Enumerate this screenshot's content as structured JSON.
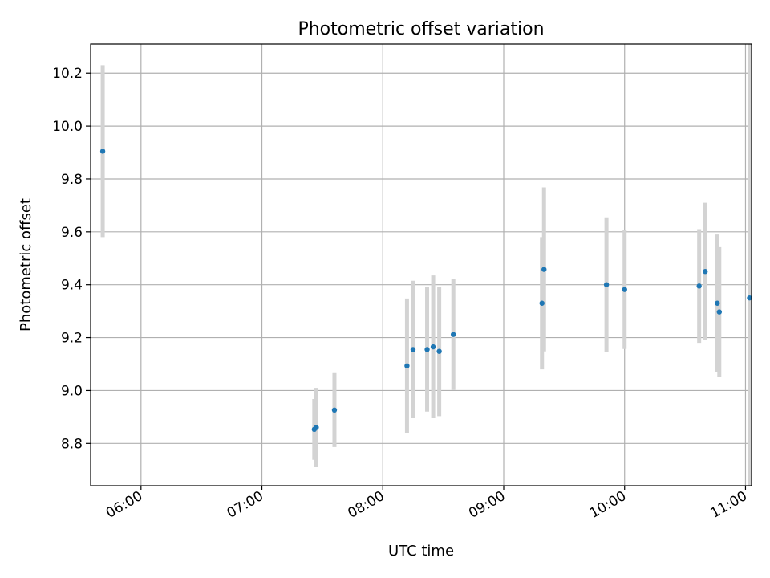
{
  "chart_data": {
    "type": "scatter",
    "title": "Photometric offset variation",
    "xlabel": "UTC time",
    "ylabel": "Photometric offset",
    "x_axis": "time",
    "xlim": [
      "05:35",
      "11:03"
    ],
    "ylim": [
      8.64,
      10.31
    ],
    "xticks": [
      "06:00",
      "07:00",
      "08:00",
      "09:00",
      "10:00",
      "11:00"
    ],
    "yticks": [
      8.8,
      9.0,
      9.2,
      9.4,
      9.6,
      9.8,
      10.0,
      10.2
    ],
    "ytick_labels": [
      "8.8",
      "9.0",
      "9.2",
      "9.4",
      "9.6",
      "9.8",
      "10.0",
      "10.2"
    ],
    "grid": true,
    "colors": {
      "point": "#1f77b4",
      "errorbar": "#d3d3d3",
      "grid": "#b0b0b0"
    },
    "series": [
      {
        "points": [
          {
            "x": "05:41",
            "y": 9.905,
            "err": 0.325
          },
          {
            "x": "07:26",
            "y": 8.853,
            "err": 0.115
          },
          {
            "x": "07:27",
            "y": 8.86,
            "err": 0.15
          },
          {
            "x": "07:36",
            "y": 8.926,
            "err": 0.14
          },
          {
            "x": "08:12",
            "y": 9.093,
            "err": 0.255
          },
          {
            "x": "08:15",
            "y": 9.155,
            "err": 0.26
          },
          {
            "x": "08:22",
            "y": 9.155,
            "err": 0.235
          },
          {
            "x": "08:25",
            "y": 9.165,
            "err": 0.27
          },
          {
            "x": "08:28",
            "y": 9.148,
            "err": 0.245
          },
          {
            "x": "08:35",
            "y": 9.212,
            "err": 0.21
          },
          {
            "x": "09:19",
            "y": 9.33,
            "err": 0.25
          },
          {
            "x": "09:20",
            "y": 9.458,
            "err": 0.31
          },
          {
            "x": "09:51",
            "y": 9.4,
            "err": 0.255
          },
          {
            "x": "10:00",
            "y": 9.382,
            "err": 0.225
          },
          {
            "x": "10:37",
            "y": 9.395,
            "err": 0.215
          },
          {
            "x": "10:40",
            "y": 9.45,
            "err": 0.26
          },
          {
            "x": "10:46",
            "y": 9.33,
            "err": 0.26
          },
          {
            "x": "10:47",
            "y": 9.297,
            "err": 0.245
          },
          {
            "x": "11:02",
            "y": 9.35,
            "err": 1.0
          }
        ]
      }
    ]
  }
}
